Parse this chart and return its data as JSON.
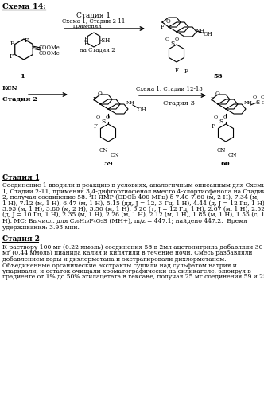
{
  "title": "Схема 14:",
  "bg_color": "#ffffff",
  "text_color": "#000000",
  "figsize": [
    3.32,
    4.99
  ],
  "dpi": 100,
  "stage1_label": "Стадия 1",
  "stage1_sub1": "Схема 1, Стадии 2-11",
  "stage1_sub2": "применяя",
  "stage1_sub3": "на Стадии 2",
  "stage2_kcn": "KCN",
  "stage2_label": "Стадия 2",
  "stage3_sub1": "Схема 1, Стадии 12-13",
  "stage3_label": "Стадия 3",
  "compound1_label": "1",
  "compound58_label": "58",
  "compound59_label": "59",
  "compound60_label": "60",
  "section1_title": "Стадия 1",
  "section1_lines": [
    "Соединение 1 вводили в реакцию в условиях, аналогичным описанным для Схемы",
    "1, Стадии 2-11, применяя 3,4-дифтортиофенол вместо 4-хлортиофенола на Стадии",
    "2, получая соединение 58. ¹H ЯМР (CDCl₃ 400 МГц) δ 7.40-7.60 (м, 2 H), 7.34 (м,",
    "1 H), 7.12 (м, 1 H), 6.47 (м, 1 H), 5.15 (дд, J = 12, 3 Гц, 1 H), 4.44 (д, J = 12 Гц, 1 H),",
    "3.93 (м, 1 H), 3.80 (м, 2 H), 3.50 (м, 1 H), 3.20 (т, J = 12 Гц, 1 H), 2.67 (м, 1 H), 2.52",
    "(д, J = 10 Гц, 1 H), 2.35 (м, 1 H), 2.26 (м, 1 H), 2.12 (м, 1 H), 1.85 (м, 1 H), 1.55 (с, 1",
    "H). МС: Вычисл. для C₂₆H₁₉F₄O₅S (МН+), m/z = 447.1; найдено 447.2.  Время",
    "удерживания: 3.93 мин."
  ],
  "section2_title": "Стадия 2",
  "section2_lines": [
    "К раствору 100 мг (0.22 ммоль) соединения 58 в 2мл ацетонитрила добавляли 30",
    "мг (0.44 ммоль) цианида калия и кипятили в течение ночи. Смесь разбавляли",
    "добавлением воды и дихлорметана и экстрагировали дихлорметаном.",
    "Объединенные органические экстракты сушили над сульфатом натрия и",
    "упаривали, и остаток очищали хроматографически на силикагеле, элюируя в",
    "градиенте от 1% до 50% этилацетата в гексане, получая 25 мг соединения 59 и 25"
  ]
}
